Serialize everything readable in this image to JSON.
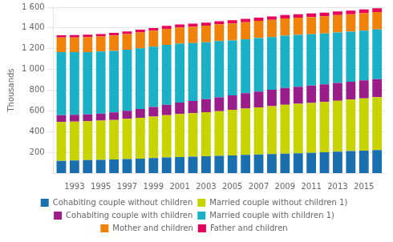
{
  "chart_data": {
    "type": "bar",
    "stacked": true,
    "ylabel": "Thousands",
    "x": [
      1992,
      1993,
      1994,
      1995,
      1996,
      1997,
      1998,
      1999,
      2000,
      2001,
      2002,
      2003,
      2004,
      2005,
      2006,
      2007,
      2008,
      2009,
      2010,
      2011,
      2012,
      2013,
      2014,
      2015,
      2016
    ],
    "xlim": [
      1991.4,
      2016.6
    ],
    "xticks": [
      1993,
      1995,
      1997,
      1999,
      2001,
      2003,
      2005,
      2007,
      2009,
      2011,
      2013,
      2015
    ],
    "ylim": [
      0,
      1600
    ],
    "yticks": [
      200,
      400,
      600,
      800,
      {
        "value": 1000,
        "label": "1 000"
      },
      {
        "value": 1200,
        "label": "1 200"
      },
      {
        "value": 1400,
        "label": "1 400"
      },
      {
        "value": 1600,
        "label": "1 600"
      }
    ],
    "grid": "y",
    "legend": "bottom",
    "series": [
      {
        "name": "Cohabiting couple without children",
        "color": "#1a6faf",
        "values": [
          118,
          122,
          125,
          128,
          131,
          135,
          140,
          145,
          150,
          155,
          158,
          162,
          166,
          170,
          175,
          179,
          183,
          188,
          192,
          196,
          201,
          207,
          212,
          217,
          222
        ]
      },
      {
        "name": "Married couple without children 1)",
        "color": "#c8d400",
        "values": [
          375,
          375,
          375,
          378,
          382,
          388,
          393,
          400,
          408,
          415,
          420,
          425,
          432,
          440,
          448,
          455,
          462,
          470,
          476,
          480,
          485,
          490,
          497,
          503,
          510
        ]
      },
      {
        "name": "Cohabiting couple with children",
        "color": "#9b1d8a",
        "values": [
          65,
          65,
          66,
          68,
          72,
          78,
          85,
          92,
          100,
          110,
          118,
          127,
          133,
          140,
          148,
          153,
          158,
          163,
          165,
          168,
          170,
          172,
          173,
          174,
          175
        ]
      },
      {
        "name": "Married couple with children 1)",
        "color": "#1ab0c8",
        "values": [
          610,
          605,
          602,
          598,
          594,
          590,
          586,
          582,
          578,
          568,
          558,
          548,
          542,
          530,
          520,
          515,
          510,
          505,
          500,
          495,
          490,
          487,
          483,
          480,
          478
        ]
      },
      {
        "name": "Mother and children",
        "color": "#f0820a",
        "values": [
          140,
          142,
          144,
          146,
          148,
          150,
          152,
          154,
          156,
          157,
          158,
          160,
          162,
          164,
          165,
          166,
          166,
          166,
          166,
          167,
          167,
          168,
          168,
          168,
          168
        ]
      },
      {
        "name": "Father and children",
        "color": "#e8005a",
        "values": [
          22,
          23,
          24,
          24,
          25,
          26,
          27,
          27,
          28,
          28,
          29,
          29,
          30,
          30,
          31,
          32,
          32,
          33,
          33,
          34,
          34,
          35,
          35,
          36,
          37
        ]
      }
    ]
  }
}
